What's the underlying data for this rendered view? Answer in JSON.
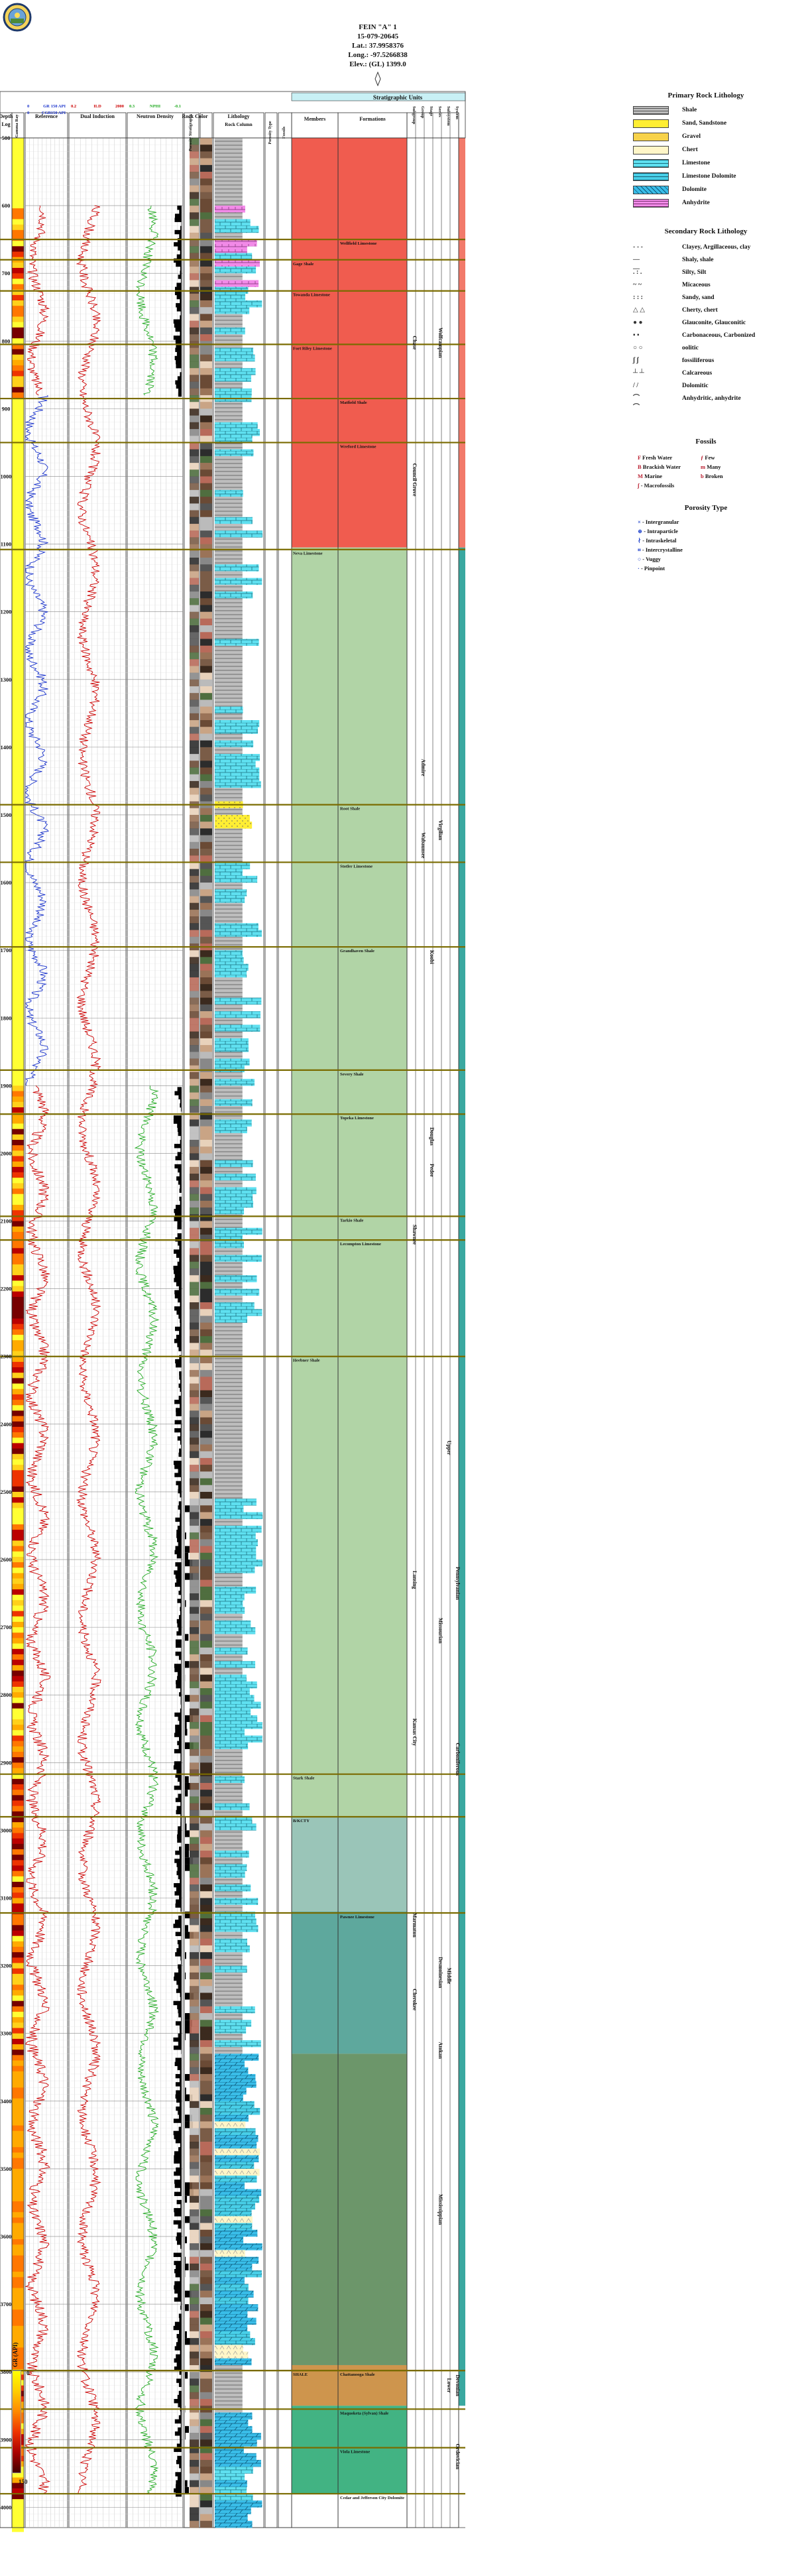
{
  "well": {
    "name": "FEIN \"A\" 1",
    "api": "15-079-20645",
    "lat": "Lat.: 37.9958376",
    "long": "Long.: -97.5266838",
    "elev": "Elev.: (GL) 1399.0"
  },
  "logo": {
    "name": "state-seal-icon"
  },
  "track_titles": {
    "depth": "Depth",
    "log": "Log",
    "gamma": "Gamma Ray",
    "reference": "Reference",
    "dual_induction": "Dual Induction",
    "neutron_density": "Neutron Density",
    "porosity": "Porosity Stratigraphy",
    "rock_color": "Rock Color",
    "lithology": "Lithology",
    "rock_column": "Rock Column",
    "porosity_type": "Porosity Type",
    "fossils": "Fossils",
    "strat_units": "Stratigraphic Units",
    "members": "Members",
    "formations": "Formations",
    "subgroup": "Subgroup",
    "group": "Group",
    "stage": "Stage",
    "series": "Series",
    "subsystem": "Subsystem",
    "system": "System"
  },
  "curve_scales": {
    "gr_name": "GR",
    "gr_min": "0",
    "gr_max": "150 API",
    "cgr_name": "CGR",
    "cgr_min": "0",
    "cgr_max": "150 API",
    "ild_name": "ILD",
    "ild_min": "0.2",
    "ild_max": "2000",
    "nphi_name": "NPHI",
    "nphi_min": "0.3",
    "nphi_max": "-0.1"
  },
  "depth_ticks": [
    "500",
    "600",
    "700",
    "800",
    "900",
    "1000",
    "1100",
    "1200",
    "1300",
    "1400",
    "1500",
    "1600",
    "1700",
    "1800",
    "1900",
    "2000",
    "2100",
    "2200",
    "2300",
    "2400",
    "2500",
    "2600",
    "2700",
    "2800",
    "2900",
    "3000",
    "3100",
    "3200",
    "3300",
    "3400",
    "3500",
    "3600",
    "3700",
    "3800",
    "3900",
    "4000"
  ],
  "tops": [
    {
      "name": "Wellfield Limestone",
      "col": "formation",
      "depth": 650
    },
    {
      "name": "Gage Shale",
      "col": "member",
      "depth": 680
    },
    {
      "name": "Towanda Limestone",
      "col": "member",
      "depth": 726
    },
    {
      "name": "Fort Riley Limestone",
      "col": "member",
      "depth": 805
    },
    {
      "name": "Matfield Shale",
      "col": "formation",
      "depth": 885
    },
    {
      "name": "Wreford Limestone",
      "col": "formation",
      "depth": 950
    },
    {
      "name": "Neva Limestone",
      "col": "member",
      "depth": 1108
    },
    {
      "name": "Root Shale",
      "col": "formation",
      "depth": 1485
    },
    {
      "name": "Stotler Limestone",
      "col": "formation",
      "depth": 1570
    },
    {
      "name": "Grandhaven Shale",
      "col": "formation",
      "depth": 1695
    },
    {
      "name": "Severy Shale",
      "col": "formation",
      "depth": 1877
    },
    {
      "name": "Topeka Limestone",
      "col": "formation",
      "depth": 1942
    },
    {
      "name": "Tarkio Shale",
      "col": "formation",
      "depth": 2093
    },
    {
      "name": "Lecompton Limestone",
      "col": "formation",
      "depth": 2128
    },
    {
      "name": "Heebner Shale",
      "col": "member",
      "depth": 2300
    },
    {
      "name": "Stark Shale",
      "col": "member",
      "depth": 2917
    },
    {
      "name": "B/KCTY",
      "col": "member",
      "depth": 2980
    },
    {
      "name": "Pawnee Limestone",
      "col": "formation",
      "depth": 3122
    },
    {
      "name": "SHALE",
      "col": "member",
      "depth": 3798
    },
    {
      "name": "Chattanooga Shale",
      "col": "formation",
      "depth": 3798
    },
    {
      "name": "Maquoketa (Sylvan) Shale",
      "col": "formation",
      "depth": 3855
    },
    {
      "name": "Viola Limestone",
      "col": "formation",
      "depth": 3912
    },
    {
      "name": "Cedar and Jefferson City Dolomite",
      "col": "formation",
      "depth": 3980
    }
  ],
  "strat_columns": [
    {
      "col": 0,
      "name": "Subgroup",
      "units": [
        {
          "name": "Chase",
          "from": 500,
          "to": 1105
        },
        {
          "name": "Council Grove",
          "from": 905,
          "to": 1105
        },
        {
          "name": "Shawnee",
          "from": 1940,
          "to": 2300
        },
        {
          "name": "Lansing",
          "from": 2480,
          "to": 2780
        },
        {
          "name": "Kansas City",
          "from": 2780,
          "to": 2930
        },
        {
          "name": "Marmaton",
          "from": 3100,
          "to": 3180
        },
        {
          "name": "Cherokee",
          "from": 3180,
          "to": 3320
        }
      ]
    },
    {
      "col": 1,
      "name": "Group",
      "units": [
        {
          "name": "Wabaunsee",
          "from": 1390,
          "to": 1700
        },
        {
          "name": "Admire",
          "from": 1390,
          "to": 1470
        }
      ]
    },
    {
      "col": 2,
      "name": "Stage",
      "units": [
        {
          "name": "Koobi",
          "from": 1420,
          "to": 2000
        },
        {
          "name": "Douglas",
          "from": 1950,
          "to": 2000
        },
        {
          "name": "Pedee",
          "from": 2000,
          "to": 2050
        }
      ]
    },
    {
      "col": 3,
      "name": "Series",
      "units": [
        {
          "name": "Wolfcampian",
          "from": 500,
          "to": 1105
        },
        {
          "name": "Virgilian",
          "from": 1105,
          "to": 1940
        },
        {
          "name": "Missourian",
          "from": 2480,
          "to": 2930
        },
        {
          "name": "Desmoinesian",
          "from": 3100,
          "to": 3320
        },
        {
          "name": "Atokan",
          "from": 3320,
          "to": 3330
        },
        {
          "name": "Mississippian",
          "from": 3330,
          "to": 3790
        }
      ]
    },
    {
      "col": 4,
      "name": "Subsystem",
      "units": [
        {
          "name": "Upper",
          "from": 1940,
          "to": 2930
        },
        {
          "name": "Middle",
          "from": 3100,
          "to": 3330
        },
        {
          "name": "Lower",
          "from": 3790,
          "to": 3850
        }
      ]
    },
    {
      "col": 5,
      "name": "System",
      "units": [
        {
          "name": "Pennsylvanian",
          "from": 1940,
          "to": 3330
        },
        {
          "name": "Carboniferous",
          "from": 2000,
          "to": 3790
        },
        {
          "name": "Devonian",
          "from": 3790,
          "to": 3850
        },
        {
          "name": "Ordovician",
          "from": 3850,
          "to": 4000
        }
      ]
    }
  ],
  "legend_primary": {
    "title": "Primary Rock Lithology",
    "items": [
      {
        "label": "Shale",
        "swatch": "shale"
      },
      {
        "label": "Sand, Sandstone",
        "swatch": "sand"
      },
      {
        "label": "Gravel",
        "swatch": "gravel"
      },
      {
        "label": "Chert",
        "swatch": "chert"
      },
      {
        "label": "Limestone",
        "swatch": "limestone"
      },
      {
        "label": "Limestone Dolomite",
        "swatch": "limedolo"
      },
      {
        "label": "Dolomite",
        "swatch": "dolomite"
      },
      {
        "label": "Anhydrite",
        "swatch": "anhydrite"
      }
    ]
  },
  "legend_secondary": {
    "title": "Secondary Rock Lithology",
    "items": [
      {
        "label": "Clayey, Argillaceous, clay",
        "icon": "- - -"
      },
      {
        "label": "Shaly, shale",
        "icon": "— —"
      },
      {
        "label": "Silty, Silt",
        "icon": ". : ."
      },
      {
        "label": "Micaceous",
        "icon": "~ ~"
      },
      {
        "label": "Sandy, sand",
        "icon": ": : :"
      },
      {
        "label": "Cherty, chert",
        "icon": "△ △"
      },
      {
        "label": "Glauconite, Glauconitic",
        "icon": "● ●"
      },
      {
        "label": "Carbonaceous, Carbonized",
        "icon": "▪ ▪"
      },
      {
        "label": "oolitic",
        "icon": "○ ○"
      },
      {
        "label": "fossiliferous",
        "icon": "ʃ ʃ"
      },
      {
        "label": "Calcareous",
        "icon": "┴ ┴"
      },
      {
        "label": "Dolomitic",
        "icon": "/ /"
      },
      {
        "label": "Anhydritic, anhydrite",
        "icon": "⌒ ⌒"
      }
    ]
  },
  "legend_fossils": {
    "title": "Fossils",
    "items": [
      {
        "label": "Fresh Water",
        "icon": "F"
      },
      {
        "label": "Few",
        "icon": "ƒ"
      },
      {
        "label": "Brackish Water",
        "icon": "B"
      },
      {
        "label": "Many",
        "icon": "m"
      },
      {
        "label": "Marine",
        "icon": "M"
      },
      {
        "label": "Broken",
        "icon": "b"
      },
      {
        "label": "- Macrofossils",
        "icon": "ʃ"
      }
    ]
  },
  "legend_porosity": {
    "title": "Porosity Type",
    "items": [
      {
        "label": "- Intergranular",
        "icon": "×"
      },
      {
        "label": "- Intraparticle",
        "icon": "⊕"
      },
      {
        "label": "- Intraskeletal",
        "icon": "∤"
      },
      {
        "label": "- Intercrystalline",
        "icon": "⌗"
      },
      {
        "label": "- Vuggy",
        "icon": "○"
      },
      {
        "label": "- Pinpoint",
        "icon": "·"
      }
    ]
  },
  "gr_colorbar": {
    "title": "GR (API)",
    "min": "0",
    "max": "150"
  },
  "colors": {
    "permian": "#ee4a3c",
    "penn_upper": "#a8cf9c",
    "penn_middle": "#8fbfb0",
    "penn_lower": "#4d9e92",
    "miss": "#5c8b5a",
    "devonian": "#c98a3a",
    "ordovician": "#2eab76",
    "gr_curve": "#1a33cc",
    "ild_curve": "#cc0000",
    "nphi_curve": "#22aa22",
    "top_line": "#7a6b00"
  }
}
